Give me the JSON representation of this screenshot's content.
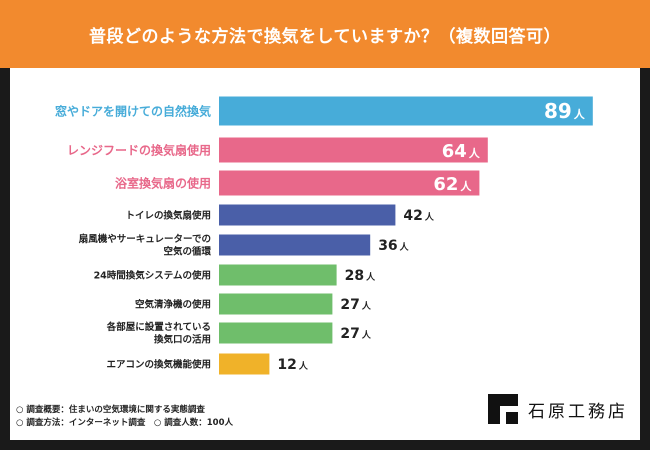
{
  "header": {
    "title": "普段どのような方法で換気をしていますか？（複数回答可）"
  },
  "chart_data": {
    "type": "bar",
    "orientation": "horizontal",
    "title": "普段どのような方法で換気をしていますか？（複数回答可）",
    "unit": "人",
    "xlim": [
      0,
      100
    ],
    "categories": [
      [
        "窓やドアを開けての自然換気"
      ],
      [
        "レンジフードの換気扇使用"
      ],
      [
        "浴室換気扇の使用"
      ],
      [
        "トイレの換気扇使用"
      ],
      [
        "扇風機やサーキュレーターでの",
        "空気の循環"
      ],
      [
        "24時間換気システムの使用"
      ],
      [
        "空気清浄機の使用"
      ],
      [
        "各部屋に設置されている",
        "換気口の活用"
      ],
      [
        "エアコンの換気機能使用"
      ]
    ],
    "values": [
      89,
      64,
      62,
      42,
      36,
      28,
      27,
      27,
      12
    ],
    "colors": [
      "#47acd9",
      "#e8688a",
      "#e8688a",
      "#4a5fa8",
      "#4a5fa8",
      "#6fbe6b",
      "#6fbe6b",
      "#6fbe6b",
      "#f0b229"
    ],
    "label_colors": [
      "#47acd9",
      "#e8688a",
      "#e8688a",
      "#222222",
      "#222222",
      "#222222",
      "#222222",
      "#222222",
      "#222222"
    ],
    "highlight": [
      true,
      true,
      true,
      false,
      false,
      false,
      false,
      false,
      false
    ]
  },
  "notes": {
    "line1": "○ 調査概要：住まいの空気環境に関する実態調査",
    "line2": "○ 調査方法：インターネット調査　○ 調査人数：100人"
  },
  "brand": {
    "name": "石原工務店"
  }
}
